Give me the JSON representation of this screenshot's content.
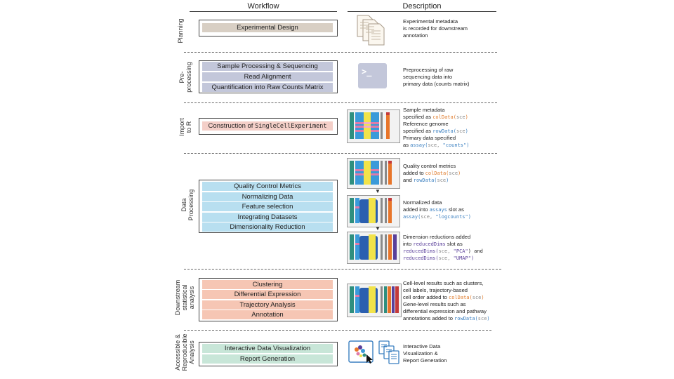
{
  "headers": {
    "workflow": "Workflow",
    "description": "Description"
  },
  "sections": {
    "planning": {
      "label": "Planning",
      "steps": [
        "Experimental Design"
      ],
      "desc": [
        "Experimental metadata",
        "is recorded for downstream",
        "annotation"
      ]
    },
    "preprocessing": {
      "label_line1": "Pre-",
      "label_line2": "processing",
      "steps": [
        "Sample Processing & Sequencing",
        "Read Alignment",
        "Quantification into Raw Counts Matrix"
      ],
      "terminal_prompt": ">_",
      "desc": [
        "Preprocessing of raw",
        "sequencing data into",
        "primary data (counts matrix)"
      ]
    },
    "import": {
      "label_line1": "Import",
      "label_line2": "to R",
      "step_prefix": "Construction of ",
      "step_code": "SingleCellExperiment",
      "desc": {
        "l1": "Sample metadata",
        "l2_text": "specified as ",
        "l2_code": "colData(",
        "l2_arg": "sce",
        "l2_close": ")",
        "l3": "Reference genome",
        "l4_text": "specified as ",
        "l4_code": "rowData(",
        "l4_arg": "sce",
        "l4_close": ")",
        "l5": "Primary data specified",
        "l6_text": "as ",
        "l6_code": "assay(",
        "l6_arg": "sce, ",
        "l6_str": "\"counts\"",
        "l6_close": ")"
      }
    },
    "dataprocessing": {
      "label_line1": "Data",
      "label_line2": "Processing",
      "steps": [
        "Quality Control Metrics",
        "Normalizing Data",
        "Feature selection",
        "Integrating Datasets",
        "Dimensionality Reduction"
      ],
      "desc_a": {
        "l1": "Quality control metrics",
        "l2_text": "added to ",
        "l2_code": "colData(",
        "l2_arg": "sce",
        "l2_close": ")",
        "l3_text": "and ",
        "l3_code": "rowData(",
        "l3_arg": "sce",
        "l3_close": ")"
      },
      "desc_b": {
        "l1": "Normalized data",
        "l2_text": "added into ",
        "l2_code": "assays",
        "l2_tail": " slot as",
        "l3_code": "assay(",
        "l3_arg": "sce, ",
        "l3_str": "\"logcounts\"",
        "l3_close": ")"
      },
      "desc_c": {
        "l1": "Dimension reductions added",
        "l2_text": "into ",
        "l2_code": "reducedDims",
        "l2_tail": " slot as",
        "l3_code": "reducedDims(",
        "l3_arg": "sce, ",
        "l3_str": "\"PCA\"",
        "l3_close": ") and",
        "l4_code": "reducedDims(",
        "l4_arg": "sce, ",
        "l4_str": "\"UMAP\"",
        "l4_close": ")"
      }
    },
    "downstream": {
      "label_line1": "Downstream",
      "label_line2": "statistical",
      "label_line3": "analysis",
      "steps": [
        "Clustering",
        "Differential Expression",
        "Trajectory Analysis",
        "Annotation"
      ],
      "desc": {
        "l1": "Cell-level results such as  clusters,",
        "l2": "cell labels, trajectory-based",
        "l3_text": "cell order added to ",
        "l3_code": "colData(",
        "l3_arg": "sce",
        "l3_close": ")",
        "l4": "Gene-level results such as",
        "l5": "differential expression and pathway",
        "l6_text": "annotations added to ",
        "l6_code": "rowData(",
        "l6_arg": "sce",
        "l6_close": ")"
      }
    },
    "accessible": {
      "label_line1": "Accessible &",
      "label_line2": "Reproducible",
      "label_line3": "Analysis",
      "steps": [
        "Interactive Data Visualization",
        "Report Generation"
      ],
      "desc": [
        "Interactive Data",
        "Visualization &",
        "Report Generation"
      ]
    }
  },
  "colors": {
    "planning": "#d8cfc4",
    "preprocessing": "#c3c7da",
    "import": "#f4cfc8",
    "dataprocessing": "#b8dff0",
    "downstream": "#f6c6b4",
    "accessible": "#c8e6d8"
  }
}
